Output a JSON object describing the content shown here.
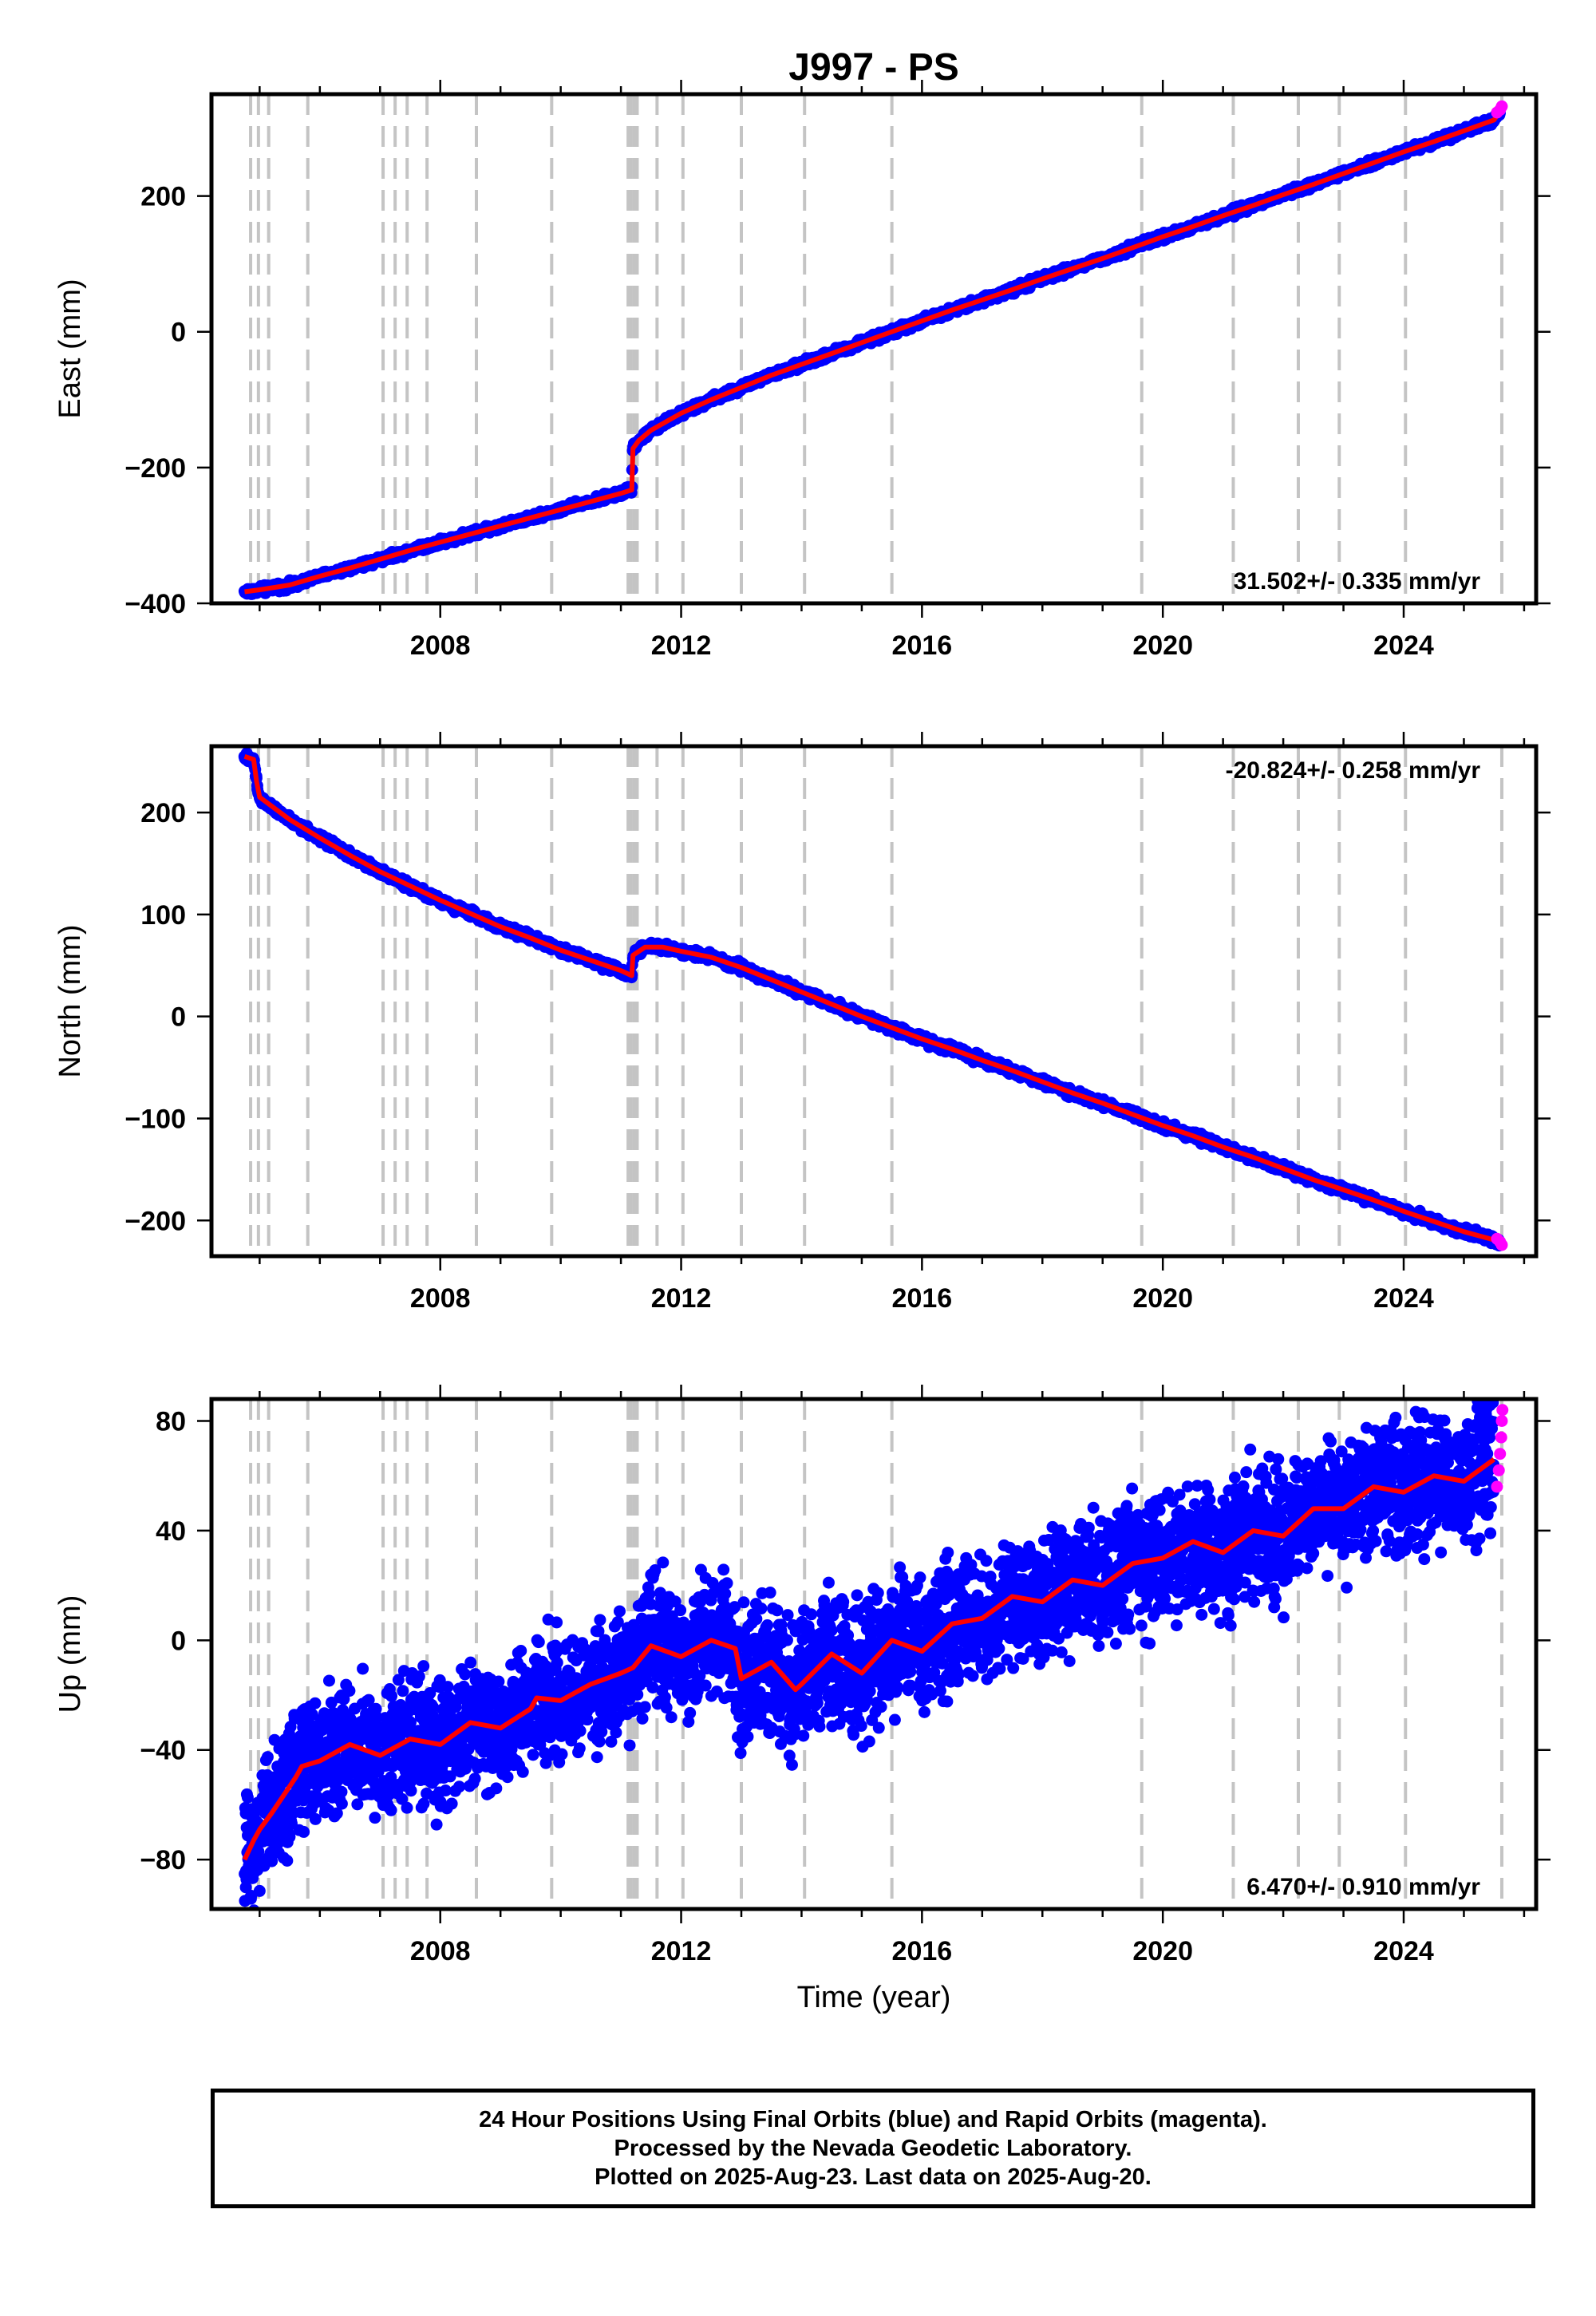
{
  "title": "J997 - PS",
  "colors": {
    "final_orbits": "#0000ff",
    "rapid_orbits": "#ff00ff",
    "model": "#ff0000",
    "events": "#c4c4c4"
  },
  "xlabel": "Time (year)",
  "footer": {
    "line1": "24 Hour Positions Using Final Orbits (blue) and Rapid Orbits (magenta).",
    "line2": "Processed by the Nevada Geodetic Laboratory.",
    "line3": "Plotted on 2025-Aug-23. Last data on 2025-Aug-20."
  },
  "chart_data": [
    {
      "type": "scatter",
      "ylabel": "East (mm)",
      "rate": "31.502+/- 0.335 mm/yr",
      "xlim": [
        2004.2,
        2026.2
      ],
      "ylim": [
        -400,
        350
      ],
      "xticks": [
        2008,
        2012,
        2016,
        2020,
        2024
      ],
      "yticks": [
        -400,
        -200,
        0,
        200
      ],
      "series": [
        {
          "name": "Final Orbits",
          "x": [
            2004.75,
            2005.0,
            2005.5,
            2006.0,
            2006.5,
            2007.0,
            2007.5,
            2008.0,
            2008.5,
            2009.0,
            2009.5,
            2010.0,
            2010.5,
            2011.0,
            2011.18,
            2011.2,
            2011.3,
            2011.5,
            2012.0,
            2012.5,
            2013.0,
            2013.5,
            2014.0,
            2014.5,
            2015.0,
            2015.5,
            2016.0,
            2016.5,
            2017.0,
            2017.5,
            2018.0,
            2018.5,
            2019.0,
            2019.5,
            2020.0,
            2020.5,
            2021.0,
            2021.5,
            2022.0,
            2022.5,
            2023.0,
            2023.5,
            2024.0,
            2024.5,
            2025.0,
            2025.5,
            2025.6
          ],
          "y": [
            -383,
            -380,
            -373,
            -360,
            -348,
            -335,
            -322,
            -310,
            -298,
            -286,
            -274,
            -262,
            -250,
            -238,
            -233,
            -172,
            -160,
            -145,
            -120,
            -100,
            -82,
            -64,
            -48,
            -32,
            -16,
            0,
            16,
            32,
            47,
            62,
            78,
            93,
            108,
            124,
            140,
            155,
            171,
            186,
            202,
            217,
            233,
            249,
            265,
            280,
            296,
            312,
            325
          ]
        },
        {
          "name": "Rapid Orbits",
          "x": [
            2025.55,
            2025.6,
            2025.63
          ],
          "y": [
            323,
            327,
            332
          ]
        }
      ]
    },
    {
      "type": "scatter",
      "ylabel": "North (mm)",
      "rate": "-20.824+/- 0.258 mm/yr",
      "xlim": [
        2004.2,
        2026.2
      ],
      "ylim": [
        -235,
        265
      ],
      "xticks": [
        2008,
        2012,
        2016,
        2020,
        2024
      ],
      "yticks": [
        -200,
        -100,
        0,
        100,
        200
      ],
      "series": [
        {
          "name": "Final Orbits",
          "x": [
            2004.75,
            2004.9,
            2004.95,
            2005.0,
            2005.5,
            2006.0,
            2006.5,
            2007.0,
            2007.5,
            2008.0,
            2008.5,
            2009.0,
            2009.5,
            2010.0,
            2010.5,
            2011.0,
            2011.18,
            2011.2,
            2011.4,
            2011.7,
            2012.0,
            2012.5,
            2013.0,
            2013.5,
            2014.0,
            2014.5,
            2015.0,
            2015.5,
            2016.0,
            2016.5,
            2017.0,
            2017.5,
            2018.0,
            2018.5,
            2019.0,
            2019.5,
            2020.0,
            2020.5,
            2021.0,
            2021.5,
            2022.0,
            2022.5,
            2023.0,
            2023.5,
            2024.0,
            2024.5,
            2025.0,
            2025.5,
            2025.6
          ],
          "y": [
            255,
            252,
            230,
            215,
            193,
            175,
            158,
            142,
            128,
            114,
            101,
            88,
            77,
            65,
            55,
            45,
            40,
            60,
            68,
            68,
            64,
            58,
            48,
            36,
            24,
            12,
            0,
            -11,
            -22,
            -32,
            -43,
            -53,
            -64,
            -75,
            -85,
            -96,
            -107,
            -117,
            -128,
            -138,
            -149,
            -160,
            -170,
            -180,
            -191,
            -201,
            -211,
            -219,
            -222
          ]
        },
        {
          "name": "Rapid Orbits",
          "x": [
            2025.55,
            2025.6,
            2025.63
          ],
          "y": [
            -218,
            -221,
            -224
          ]
        }
      ]
    },
    {
      "type": "scatter",
      "ylabel": "Up (mm)",
      "rate": "6.470+/- 0.910 mm/yr",
      "xlim": [
        2004.2,
        2026.2
      ],
      "ylim": [
        -98,
        88
      ],
      "xticks": [
        2008,
        2012,
        2016,
        2020,
        2024
      ],
      "yticks": [
        -80,
        -40,
        0,
        40,
        80
      ],
      "series": [
        {
          "name": "Final Orbits",
          "x": [
            2004.75,
            2004.9,
            2005.0,
            2005.2,
            2005.6,
            2005.7,
            2006.0,
            2006.5,
            2007.0,
            2007.5,
            2008.0,
            2008.5,
            2009.0,
            2009.5,
            2009.6,
            2010.0,
            2010.5,
            2011.0,
            2011.2,
            2011.5,
            2012.0,
            2012.5,
            2012.9,
            2013.0,
            2013.5,
            2013.9,
            2014.0,
            2014.5,
            2015.0,
            2015.5,
            2016.0,
            2016.5,
            2017.0,
            2017.5,
            2018.0,
            2018.5,
            2019.0,
            2019.5,
            2020.0,
            2020.5,
            2021.0,
            2021.5,
            2022.0,
            2022.5,
            2023.0,
            2023.5,
            2024.0,
            2024.5,
            2025.0,
            2025.5
          ],
          "y": [
            -80,
            -73,
            -69,
            -63,
            -50,
            -46,
            -44,
            -38,
            -42,
            -36,
            -38,
            -30,
            -32,
            -25,
            -21,
            -22,
            -16,
            -12,
            -10,
            -2,
            -6,
            0,
            -3,
            -14,
            -8,
            -18,
            -16,
            -5,
            -12,
            0,
            -4,
            6,
            8,
            16,
            14,
            22,
            20,
            28,
            30,
            36,
            32,
            40,
            38,
            48,
            48,
            56,
            54,
            60,
            58,
            66
          ]
        },
        {
          "name": "Rapid Orbits",
          "x": [
            2025.55,
            2025.58,
            2025.6,
            2025.62,
            2025.63,
            2025.64
          ],
          "y": [
            56,
            62,
            68,
            74,
            80,
            84
          ]
        }
      ]
    }
  ],
  "events": [
    2004.85,
    2004.98,
    2005.15,
    2005.8,
    2007.05,
    2007.25,
    2007.45,
    2007.78,
    2008.6,
    2009.85,
    2011.12,
    2011.17,
    2011.22,
    2011.27,
    2011.6,
    2012.03,
    2013.0,
    2014.05,
    2015.5,
    2019.65,
    2021.17,
    2022.25,
    2022.93,
    2024.03,
    2025.63
  ]
}
